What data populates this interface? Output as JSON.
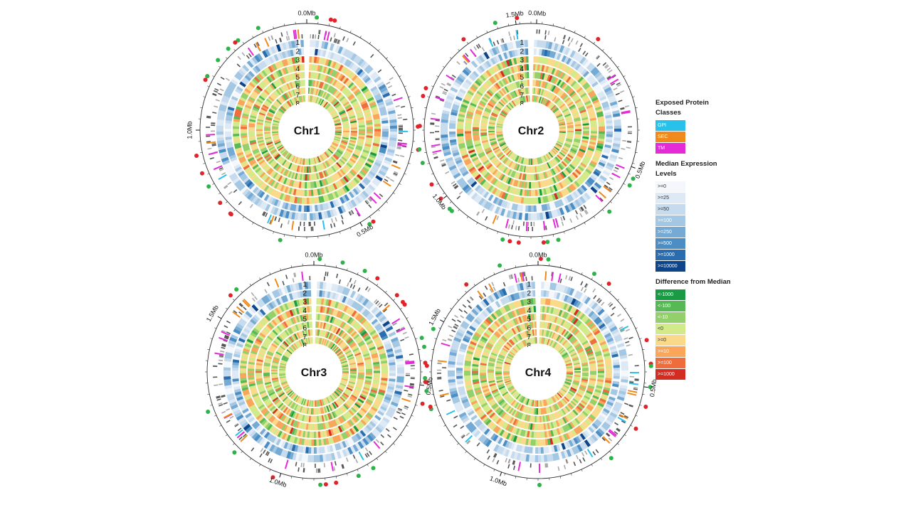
{
  "chromosomes": [
    {
      "name": "Chr1",
      "ticks": [
        "0.0Mb",
        "0.5Mb",
        "1.0Mb"
      ]
    },
    {
      "name": "Chr2",
      "ticks": [
        "0.0Mb",
        "0.5Mb",
        "1.0Mb",
        "1.5Mb"
      ]
    },
    {
      "name": "Chr3",
      "ticks": [
        "0.0Mb",
        "0.5Mb",
        "1.0Mb",
        "1.5Mb"
      ]
    },
    {
      "name": "Chr4",
      "ticks": [
        "0.0Mb",
        "0.5Mb",
        "1.0Mb",
        "1.5Mb"
      ]
    }
  ],
  "track_numbers": [
    "1",
    "2",
    "3",
    "4",
    "5",
    "6",
    "7",
    "8"
  ],
  "legend": {
    "protein_classes": {
      "title": "Exposed Protein Classes",
      "items": [
        {
          "label": "GPI",
          "color": "#29c1ea"
        },
        {
          "label": "SEC",
          "color": "#f08a1c"
        },
        {
          "label": "TM",
          "color": "#e52ad8"
        }
      ]
    },
    "expression_levels": {
      "title": "Median Expression Levels",
      "items": [
        {
          "label": ">=0",
          "color": "#f4f8fc"
        },
        {
          "label": ">=25",
          "color": "#dde9f5"
        },
        {
          "label": ">=50",
          "color": "#c7dbee"
        },
        {
          "label": ">=100",
          "color": "#a4c8e3"
        },
        {
          "label": ">=250",
          "color": "#74aad4"
        },
        {
          "label": ">=500",
          "color": "#4c8ec3"
        },
        {
          "label": ">=1000",
          "color": "#2b6cae"
        },
        {
          "label": ">=10000",
          "color": "#0e4489"
        }
      ]
    },
    "difference_from_median": {
      "title": "Difference from Median",
      "items": [
        {
          "label": "<-1000",
          "color": "#1a9a45"
        },
        {
          "label": "<-100",
          "color": "#57b956"
        },
        {
          "label": "<-10",
          "color": "#93d06b"
        },
        {
          "label": "<0",
          "color": "#d3ea8a"
        },
        {
          "label": ">=0",
          "color": "#fbd98a"
        },
        {
          "label": ">=10",
          "color": "#f9a55a"
        },
        {
          "label": ">=100",
          "color": "#ef6c3d"
        },
        {
          "label": ">=1000",
          "color": "#d32c23"
        }
      ]
    }
  },
  "dot_colors": {
    "red": "#e0242a",
    "green": "#2eb34a"
  },
  "gene_colors": {
    "dark": "#555555",
    "light": "#aaaaaa"
  }
}
